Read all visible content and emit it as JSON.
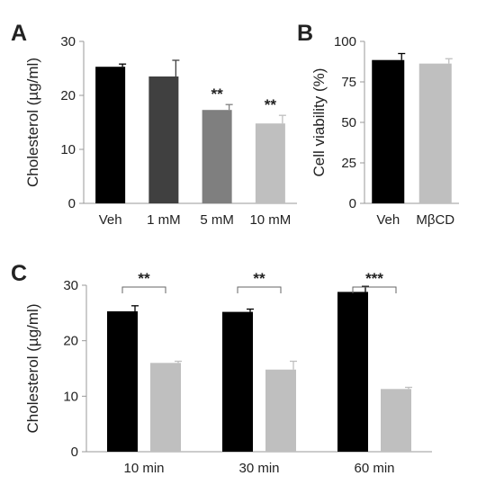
{
  "chart_data": [
    {
      "panel": "A",
      "type": "bar",
      "ylabel": "Cholesterol (µg/ml)",
      "ylim": [
        0,
        30
      ],
      "yticks": [
        0,
        10,
        20,
        30
      ],
      "categories": [
        "Veh",
        "1 mM",
        "5 mM",
        "10 mM"
      ],
      "values": [
        25.3,
        23.5,
        17.3,
        14.8
      ],
      "errors": [
        0.5,
        3.0,
        1.0,
        1.5
      ],
      "significance": [
        "",
        "",
        "**",
        "**"
      ],
      "colors": [
        "#000000",
        "#404040",
        "#7f7f7f",
        "#bfbfbf"
      ]
    },
    {
      "panel": "B",
      "type": "bar",
      "ylabel": "Cell viability (%)",
      "ylim": [
        0,
        100
      ],
      "yticks": [
        0,
        25,
        50,
        75,
        100
      ],
      "categories": [
        "Veh",
        "MβCD"
      ],
      "values": [
        88.5,
        86.3
      ],
      "errors": [
        4.0,
        3.0
      ],
      "colors": [
        "#000000",
        "#bfbfbf"
      ]
    },
    {
      "panel": "C",
      "type": "bar",
      "ylabel": "Cholesterol (µg/ml)",
      "ylim": [
        0,
        30
      ],
      "yticks": [
        0,
        10,
        20,
        30
      ],
      "categories": [
        "10 min",
        "30 min",
        "60 min"
      ],
      "series": [
        {
          "values": [
            25.3,
            25.2,
            28.8
          ],
          "errors": [
            1.0,
            0.5,
            1.0
          ],
          "color": "#000000"
        },
        {
          "values": [
            16.0,
            14.8,
            11.3
          ],
          "errors": [
            0.3,
            1.5,
            0.3
          ],
          "color": "#bfbfbf"
        }
      ],
      "significance": [
        "**",
        "**",
        "***"
      ]
    }
  ]
}
